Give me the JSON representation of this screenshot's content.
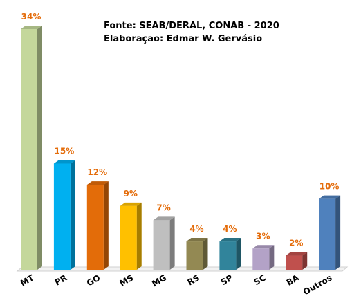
{
  "chart_data": {
    "type": "bar3d",
    "annotations": [
      "Fonte: SEAB/DERAL,  CONAB  - 2020",
      "Elaboração:  Edmar W. Gervásio"
    ],
    "categories": [
      "MT",
      "PR",
      "GO",
      "MS",
      "MG",
      "RS",
      "SP",
      "SC",
      "BA",
      "Outros"
    ],
    "values": [
      34,
      15,
      12,
      9,
      7,
      4,
      4,
      3,
      2,
      10
    ],
    "value_labels": [
      "34%",
      "15%",
      "12%",
      "9%",
      "7%",
      "4%",
      "4%",
      "3%",
      "2%",
      "10%"
    ],
    "colors": [
      "#c4d79b",
      "#00b0f0",
      "#e36c09",
      "#ffc000",
      "#bfbfbf",
      "#938953",
      "#31849b",
      "#b3a2c7",
      "#c0504d",
      "#4f81bd"
    ],
    "label_color": "#e46c0a"
  }
}
